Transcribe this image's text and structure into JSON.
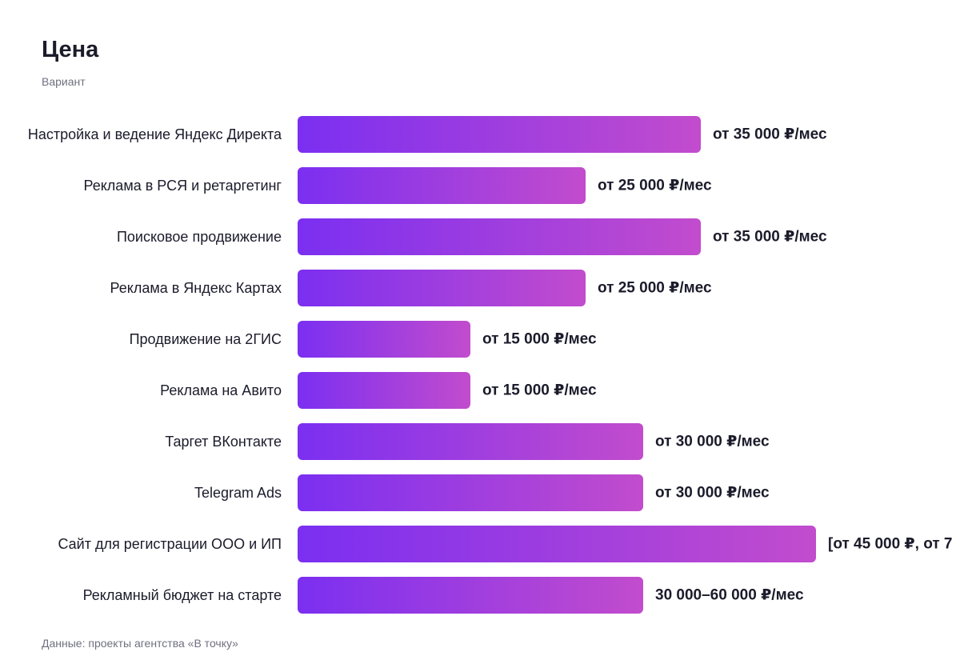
{
  "chart_data": {
    "type": "bar",
    "orientation": "horizontal",
    "title": "Цена",
    "subtitle": "Вариант",
    "source": "Данные: проекты агентства «В точку»",
    "categories": [
      "Настройка и ведение Яндекс Директа",
      "Реклама в РСЯ и ретаргетинг",
      "Поисковое продвижение",
      "Реклама в Яндекс Картах",
      "Продвижение на 2ГИС",
      "Реклама на Авито",
      "Таргет ВКонтакте",
      "Telegram Ads",
      "Сайт для регистрации ООО и ИП",
      "Рекламный бюджет на старте"
    ],
    "values": [
      35000,
      25000,
      35000,
      25000,
      15000,
      15000,
      30000,
      30000,
      45000,
      30000
    ],
    "value_labels": [
      "от 35 000 ₽/мес",
      "от 25 000 ₽/мес",
      "от 35 000 ₽/мес",
      "от 25 000 ₽/мес",
      "от 15 000 ₽/мес",
      "от 15 000 ₽/мес",
      "от 30 000 ₽/мес",
      "от 30 000 ₽/мес",
      "[от 45 000 ₽, от 7",
      "30 000–60 000 ₽/мес"
    ],
    "colors": [
      "#7b2ff1",
      "#c24ccd"
    ]
  }
}
